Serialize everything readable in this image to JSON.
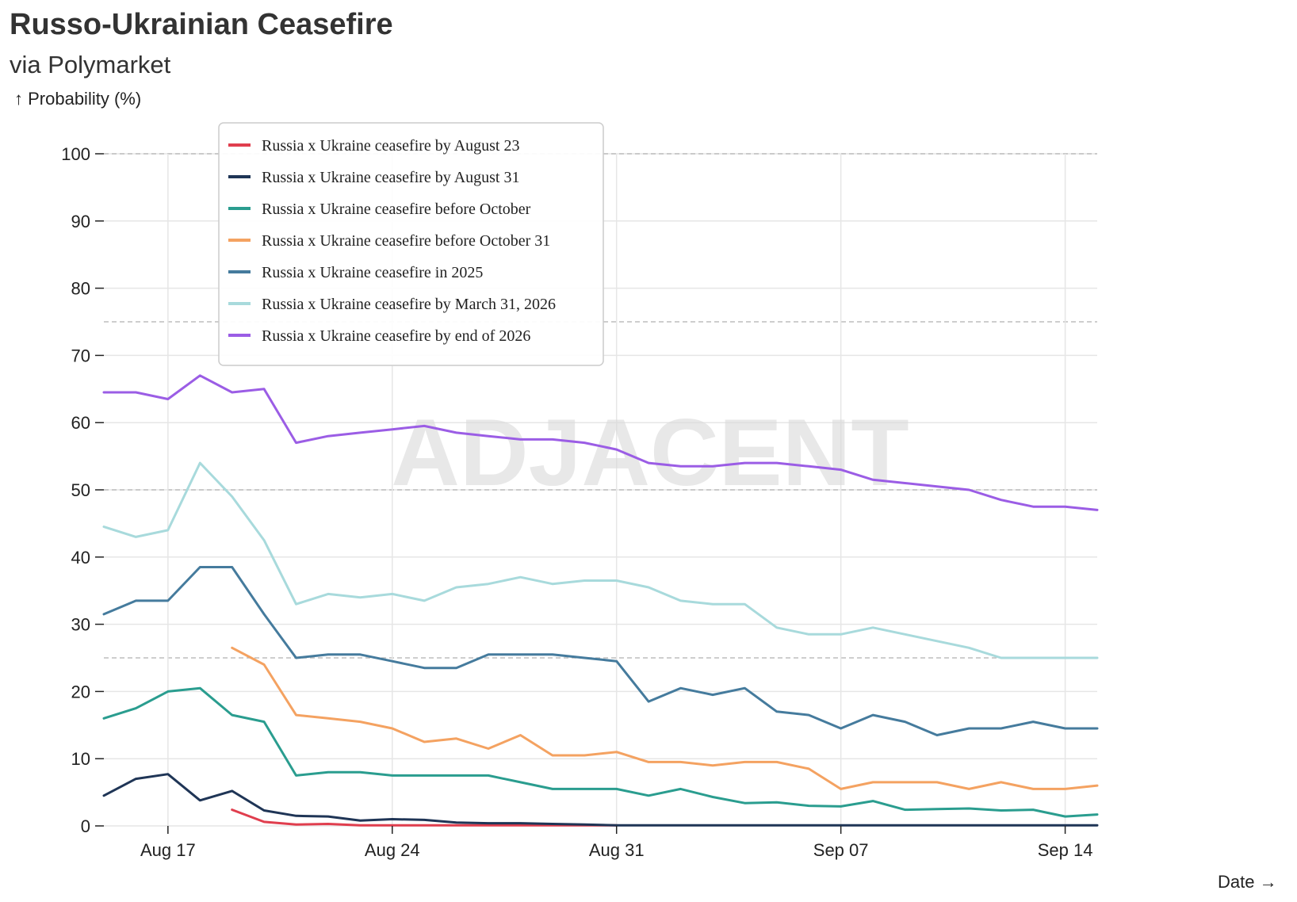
{
  "header": {
    "title": "Russo-Ukrainian Ceasefire",
    "subtitle": "via Polymarket",
    "y_axis_label": "↑ Probability (%)",
    "x_axis_label": "Date →"
  },
  "watermark": "ADJACENT",
  "chart_data": {
    "type": "line",
    "title": "Russo-Ukrainian Ceasefire",
    "subtitle": "via Polymarket",
    "xlabel": "Date",
    "ylabel": "Probability (%)",
    "ylim": [
      0,
      100
    ],
    "y_ticks": [
      0,
      10,
      20,
      30,
      40,
      50,
      60,
      70,
      80,
      90,
      100
    ],
    "x_ticks": [
      {
        "label": "Aug 17",
        "date": "2025-08-17"
      },
      {
        "label": "Aug 24",
        "date": "2025-08-24"
      },
      {
        "label": "Aug 31",
        "date": "2025-08-31"
      },
      {
        "label": "Sep 07",
        "date": "2025-09-07"
      },
      {
        "label": "Sep 14",
        "date": "2025-09-14"
      }
    ],
    "reference_lines": [
      25,
      50,
      75,
      100
    ],
    "grid": true,
    "legend_position": "top-left",
    "x": [
      "2025-08-15",
      "2025-08-16",
      "2025-08-17",
      "2025-08-18",
      "2025-08-19",
      "2025-08-20",
      "2025-08-21",
      "2025-08-22",
      "2025-08-23",
      "2025-08-24",
      "2025-08-25",
      "2025-08-26",
      "2025-08-27",
      "2025-08-28",
      "2025-08-29",
      "2025-08-30",
      "2025-08-31",
      "2025-09-01",
      "2025-09-02",
      "2025-09-03",
      "2025-09-04",
      "2025-09-05",
      "2025-09-06",
      "2025-09-07",
      "2025-09-08",
      "2025-09-09",
      "2025-09-10",
      "2025-09-11",
      "2025-09-12",
      "2025-09-13",
      "2025-09-14",
      "2025-09-15"
    ],
    "series": [
      {
        "name": "Russia x Ukraine ceasefire by August 23",
        "color": "#e03e4e",
        "values": [
          null,
          null,
          null,
          null,
          2.4,
          0.6,
          0.2,
          0.3,
          0.1,
          0.1,
          0.1,
          0.1,
          0.1,
          0.1,
          0.1,
          0.1,
          0.1,
          null,
          null,
          null,
          null,
          null,
          null,
          null,
          null,
          null,
          null,
          null,
          null,
          null,
          null,
          null
        ]
      },
      {
        "name": "Russia x Ukraine ceasefire by August 31",
        "color": "#1f3556",
        "values": [
          4.5,
          7.0,
          7.7,
          3.8,
          5.2,
          2.3,
          1.5,
          1.4,
          0.8,
          1.0,
          0.9,
          0.5,
          0.4,
          0.4,
          0.3,
          0.2,
          0.1,
          0.1,
          0.1,
          0.1,
          0.1,
          0.1,
          0.1,
          0.1,
          0.1,
          0.1,
          0.1,
          0.1,
          0.1,
          0.1,
          0.1,
          0.1
        ]
      },
      {
        "name": "Russia x Ukraine ceasefire before October",
        "color": "#2a9d8f",
        "values": [
          16.0,
          17.5,
          20.0,
          20.5,
          16.5,
          15.5,
          7.5,
          8.0,
          8.0,
          7.5,
          7.5,
          7.5,
          7.5,
          6.5,
          5.5,
          5.5,
          5.5,
          4.5,
          5.5,
          4.3,
          3.4,
          3.5,
          3.0,
          2.9,
          3.7,
          2.4,
          2.5,
          2.6,
          2.3,
          2.4,
          1.4,
          1.7
        ]
      },
      {
        "name": "Russia x Ukraine ceasefire before October 31",
        "color": "#f4a261",
        "values": [
          null,
          null,
          null,
          null,
          26.5,
          24.0,
          16.5,
          16.0,
          15.5,
          14.5,
          12.5,
          13.0,
          11.5,
          13.5,
          10.5,
          10.5,
          11.0,
          9.5,
          9.5,
          9.0,
          9.5,
          9.5,
          8.5,
          5.5,
          6.5,
          6.5,
          6.5,
          5.5,
          6.5,
          5.5,
          5.5,
          6.0
        ]
      },
      {
        "name": "Russia x Ukraine ceasefire in 2025",
        "color": "#457b9d",
        "values": [
          31.5,
          33.5,
          33.5,
          38.5,
          38.5,
          31.5,
          25.0,
          25.5,
          25.5,
          24.5,
          23.5,
          23.5,
          25.5,
          25.5,
          25.5,
          25.0,
          24.5,
          18.5,
          20.5,
          19.5,
          20.5,
          17.0,
          16.5,
          14.5,
          16.5,
          15.5,
          13.5,
          14.5,
          14.5,
          15.5,
          14.5,
          14.5
        ]
      },
      {
        "name": "Russia x Ukraine ceasefire by March 31, 2026",
        "color": "#a8dadc",
        "values": [
          44.5,
          43.0,
          44.0,
          54.0,
          49.0,
          42.5,
          33.0,
          34.5,
          34.0,
          34.5,
          33.5,
          35.5,
          36.0,
          37.0,
          36.0,
          36.5,
          36.5,
          35.5,
          33.5,
          33.0,
          33.0,
          29.5,
          28.5,
          28.5,
          29.5,
          28.5,
          27.5,
          26.5,
          25.0,
          25.0,
          25.0,
          25.0
        ]
      },
      {
        "name": "Russia x Ukraine ceasefire by end of 2026",
        "color": "#9b5de5",
        "values": [
          64.5,
          64.5,
          63.5,
          67.0,
          64.5,
          65.0,
          57.0,
          58.0,
          58.5,
          59.0,
          59.5,
          58.5,
          58.0,
          57.5,
          57.5,
          57.0,
          56.0,
          54.0,
          53.5,
          53.5,
          54.0,
          54.0,
          53.5,
          53.0,
          51.5,
          51.0,
          50.5,
          50.0,
          48.5,
          47.5,
          47.5,
          47.0
        ]
      }
    ]
  }
}
